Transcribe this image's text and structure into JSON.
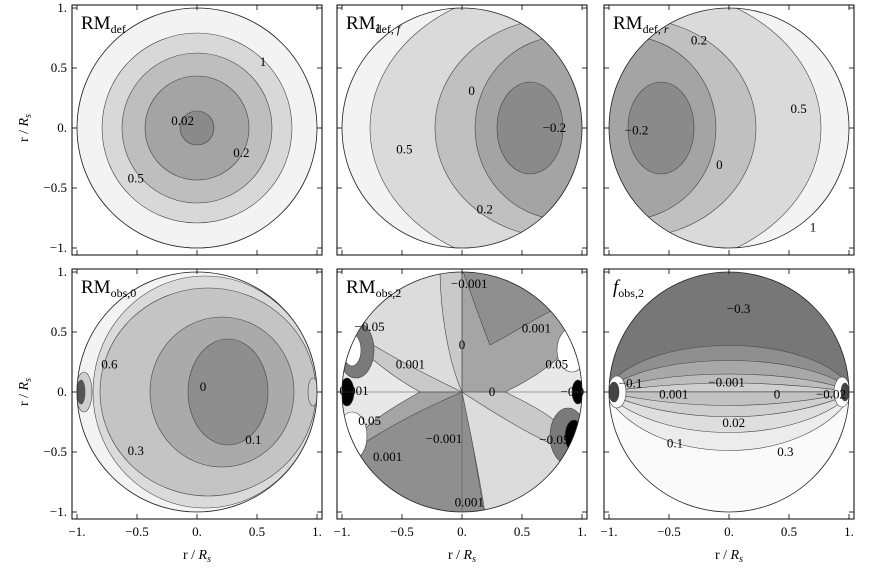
{
  "chart_data": [
    {
      "type": "contour",
      "title": "RM",
      "subscript": "def",
      "xlim": [
        -1,
        1
      ],
      "ylim": [
        -1,
        1
      ],
      "xlabel": "",
      "ylabel": "r / R",
      "ylabel_sub": "s",
      "xticks": [],
      "yticks": [
        "1.",
        "0.5",
        "0.",
        "−0.5",
        "−1."
      ],
      "contour_labels": [
        {
          "text": "1",
          "x": 0.55,
          "y": 0.55
        },
        {
          "text": "0.02",
          "x": -0.12,
          "y": 0.06
        },
        {
          "text": "0.2",
          "x": 0.37,
          "y": -0.21
        },
        {
          "text": "0.5",
          "x": -0.51,
          "y": -0.42
        }
      ]
    },
    {
      "type": "contour",
      "title": "RM",
      "subscript": "def",
      "subscript_italic": "f",
      "xlim": [
        -1,
        1
      ],
      "ylim": [
        -1,
        1
      ],
      "xlabel": "",
      "ylabel": "",
      "xticks": [],
      "yticks": [],
      "contour_labels": [
        {
          "text": "1",
          "x": -0.7,
          "y": 0.83
        },
        {
          "text": "0",
          "x": 0.08,
          "y": 0.31
        },
        {
          "text": "−0.2",
          "x": 0.77,
          "y": 0.0
        },
        {
          "text": "0.5",
          "x": -0.48,
          "y": -0.18
        },
        {
          "text": "0.2",
          "x": 0.19,
          "y": -0.68
        }
      ]
    },
    {
      "type": "contour",
      "title": "RM",
      "subscript": "def",
      "subscript_italic": "r",
      "xlim": [
        -1,
        1
      ],
      "ylim": [
        -1,
        1
      ],
      "xlabel": "",
      "ylabel": "",
      "xticks": [],
      "yticks": [],
      "contour_labels": [
        {
          "text": "0.2",
          "x": -0.25,
          "y": 0.73
        },
        {
          "text": "0.5",
          "x": 0.58,
          "y": 0.16
        },
        {
          "text": "−0.2",
          "x": -0.77,
          "y": -0.02
        },
        {
          "text": "0",
          "x": -0.08,
          "y": -0.31
        },
        {
          "text": "1",
          "x": 0.7,
          "y": -0.83
        }
      ]
    },
    {
      "type": "contour",
      "title": "RM",
      "subscript": "obs,0",
      "xlim": [
        -1,
        1
      ],
      "ylim": [
        -1,
        1
      ],
      "xlabel": "r / R",
      "xlabel_sub": "s",
      "ylabel": "r / R",
      "ylabel_sub": "s",
      "xticks": [
        "−1.",
        "−0.5",
        "0.",
        "0.5",
        "1."
      ],
      "yticks": [
        "1.",
        "0.5",
        "0.",
        "−0.5",
        "−1."
      ],
      "contour_labels": [
        {
          "text": "0.6",
          "x": -0.73,
          "y": 0.23
        },
        {
          "text": "0",
          "x": 0.05,
          "y": 0.04
        },
        {
          "text": "0.1",
          "x": 0.47,
          "y": -0.4
        },
        {
          "text": "0.3",
          "x": -0.51,
          "y": -0.49
        }
      ]
    },
    {
      "type": "contour",
      "title": "RM",
      "subscript": "obs,2",
      "xlim": [
        -1,
        1
      ],
      "ylim": [
        -1,
        1
      ],
      "xlabel": "r / R",
      "xlabel_sub": "s",
      "ylabel": "",
      "xticks": [
        "−1.",
        "−0.5",
        "0.",
        "0.5",
        "1."
      ],
      "yticks": [],
      "contour_labels": [
        {
          "text": "−0.001",
          "x": 0.06,
          "y": 0.9
        },
        {
          "text": "−0.05",
          "x": -0.77,
          "y": 0.54
        },
        {
          "text": "0.001",
          "x": 0.62,
          "y": 0.53
        },
        {
          "text": "0",
          "x": 0.0,
          "y": 0.39
        },
        {
          "text": "0.001",
          "x": -0.43,
          "y": 0.23
        },
        {
          "text": "0.05",
          "x": 0.79,
          "y": 0.23
        },
        {
          "text": "0",
          "x": 0.25,
          "y": 0.0
        },
        {
          "text": "0.001",
          "x": -0.9,
          "y": 0.01
        },
        {
          "text": "−0.0",
          "x": 0.92,
          "y": 0.0
        },
        {
          "text": "0.05",
          "x": -0.77,
          "y": -0.24
        },
        {
          "text": "−0.001",
          "x": -0.15,
          "y": -0.39
        },
        {
          "text": "−0.05",
          "x": 0.77,
          "y": -0.4
        },
        {
          "text": "0.001",
          "x": -0.62,
          "y": -0.54
        },
        {
          "text": "0.001",
          "x": 0.06,
          "y": -0.92
        }
      ]
    },
    {
      "type": "contour",
      "title": "",
      "title_italic": "f",
      "subscript": "obs,2",
      "xlim": [
        -1,
        1
      ],
      "ylim": [
        -1,
        1
      ],
      "xlabel": "r / R",
      "xlabel_sub": "s",
      "ylabel": "",
      "xticks": [
        "−1.",
        "−0.5",
        "0.",
        "0.5",
        "1."
      ],
      "yticks": [],
      "contour_labels": [
        {
          "text": "−0.3",
          "x": 0.08,
          "y": 0.69
        },
        {
          "text": "−0.1",
          "x": -0.82,
          "y": 0.07
        },
        {
          "text": "−0.001",
          "x": -0.02,
          "y": 0.08
        },
        {
          "text": "0.001",
          "x": -0.46,
          "y": -0.02
        },
        {
          "text": "0",
          "x": 0.4,
          "y": -0.02
        },
        {
          "text": "−0.02",
          "x": 0.85,
          "y": -0.02
        },
        {
          "text": "0.02",
          "x": 0.04,
          "y": -0.26
        },
        {
          "text": "0.1",
          "x": -0.45,
          "y": -0.43
        },
        {
          "text": "0.3",
          "x": 0.47,
          "y": -0.5
        }
      ]
    }
  ]
}
